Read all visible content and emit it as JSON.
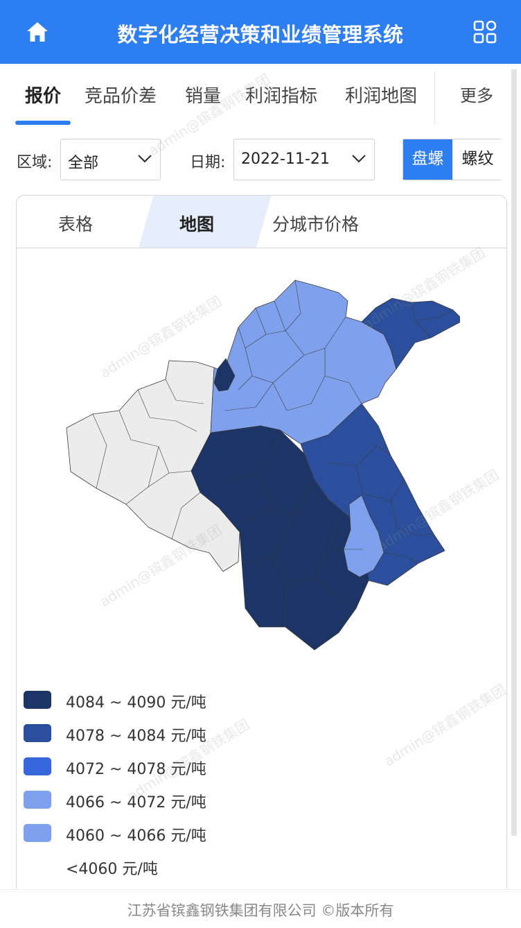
{
  "header": {
    "title": "数字化经营决策和业绩管理系统",
    "home_icon": "home-icon",
    "menu_icon": "grid-apps-icon",
    "background": "#2d7ef0"
  },
  "tabs": [
    {
      "label": "报价",
      "active": true
    },
    {
      "label": "竞品价差",
      "active": false
    },
    {
      "label": "销量",
      "active": false
    },
    {
      "label": "利润指标",
      "active": false
    },
    {
      "label": "利润地图",
      "active": false
    }
  ],
  "more_label": "更多",
  "filters": {
    "region_label": "区域:",
    "region_value": "全部",
    "date_label": "日期:",
    "date_value": "2022-11-21",
    "product_options": [
      {
        "label": "盘螺",
        "selected": true
      },
      {
        "label": "螺纹",
        "selected": false
      }
    ]
  },
  "subtabs": [
    {
      "label": "表格",
      "active": false
    },
    {
      "label": "地图",
      "active": true
    },
    {
      "label": "分城市价格",
      "active": false
    }
  ],
  "legend": [
    {
      "label": "4084 ~ 4090 元/吨",
      "color": "#1c3466"
    },
    {
      "label": "4078 ~ 4084 元/吨",
      "color": "#2b4f9c"
    },
    {
      "label": "4072 ~ 4078 元/吨",
      "color": "#3668dc"
    },
    {
      "label": "4066 ~ 4072 元/吨",
      "color": "#7fa0ec"
    },
    {
      "label": "4060 ~ 4066 元/吨",
      "color": "#7fa0ec"
    },
    {
      "label": "<4060 元/吨",
      "color": "#ececec"
    }
  ],
  "watermark": "admin@镔鑫钢铁集团",
  "footer": {
    "text": "江苏省镔鑫钢铁集团有限公司 ©版本所有"
  }
}
